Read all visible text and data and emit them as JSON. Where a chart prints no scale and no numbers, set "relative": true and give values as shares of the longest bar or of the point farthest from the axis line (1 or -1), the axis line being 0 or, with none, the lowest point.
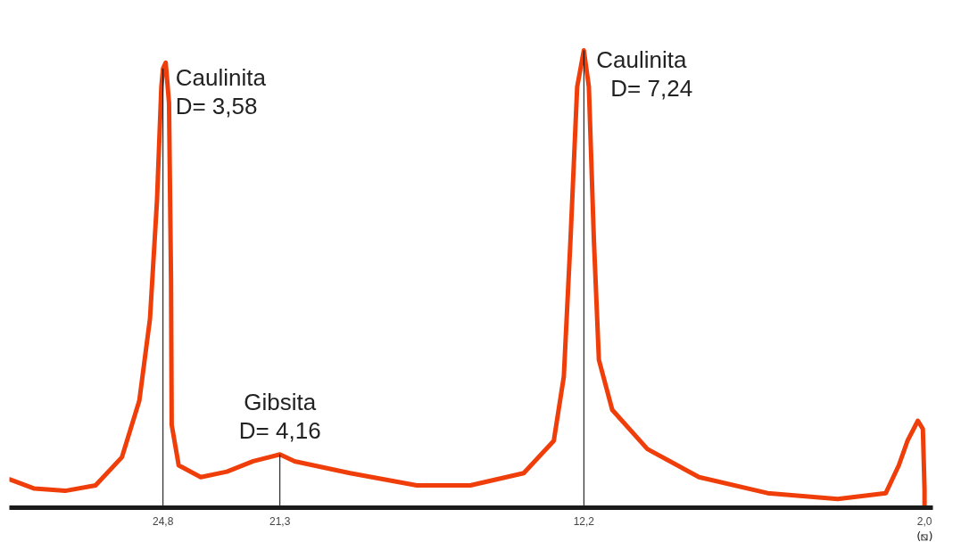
{
  "chart_data": {
    "type": "line",
    "relative": true,
    "xlabel": "(⧅)",
    "x": [
      29.38,
      28.65,
      27.73,
      26.82,
      26.03,
      25.51,
      25.19,
      24.98,
      24.85,
      24.8,
      24.72,
      24.62,
      24.56,
      24.54,
      24.33,
      23.67,
      22.89,
      22.1,
      21.3,
      20.86,
      19.2,
      17.2,
      15.6,
      14.0,
      13.1,
      12.8,
      12.6,
      12.4,
      12.2,
      12.05,
      11.9,
      11.75,
      11.35,
      10.3,
      8.75,
      6.7,
      4.6,
      3.16,
      2.77,
      2.51,
      2.2,
      2.05,
      2.0,
      2.0
    ],
    "series": [
      {
        "color": "#ef3e0a",
        "values": [
          0.057,
          0.037,
          0.032,
          0.044,
          0.106,
          0.23,
          0.41,
          0.67,
          0.92,
          0.96,
          0.973,
          0.885,
          0.496,
          0.177,
          0.088,
          0.062,
          0.074,
          0.097,
          0.112,
          0.097,
          0.071,
          0.044,
          0.044,
          0.071,
          0.142,
          0.283,
          0.584,
          0.92,
          1.0,
          0.92,
          0.584,
          0.32,
          0.21,
          0.124,
          0.062,
          0.027,
          0.014,
          0.027,
          0.088,
          0.142,
          0.186,
          0.168,
          0.035,
          0.0
        ]
      }
    ],
    "xlim": [
      29.4,
      1.75
    ],
    "xticks": [
      {
        "value": 24.8,
        "label": "24,8"
      },
      {
        "value": 21.3,
        "label": "21,3"
      },
      {
        "value": 12.2,
        "label": "12,2"
      },
      {
        "value": 2.0,
        "label": "2,0"
      }
    ],
    "ref_lines": [
      {
        "axis": "x",
        "value": 24.8,
        "color": "#000000"
      },
      {
        "axis": "x",
        "value": 21.3,
        "color": "#000000"
      },
      {
        "axis": "x",
        "value": 12.2,
        "color": "#000000"
      }
    ],
    "annotations": [
      {
        "text": "Caulinita\nD= 3,58",
        "x": 24.8,
        "y": 0.96
      },
      {
        "text": "Gibsita\nD= 4,16",
        "x": 21.3,
        "y": 0.112
      },
      {
        "text": "Caulinita\nD= 7,24",
        "x": 12.2,
        "y": 1.0
      }
    ],
    "grid": false
  }
}
